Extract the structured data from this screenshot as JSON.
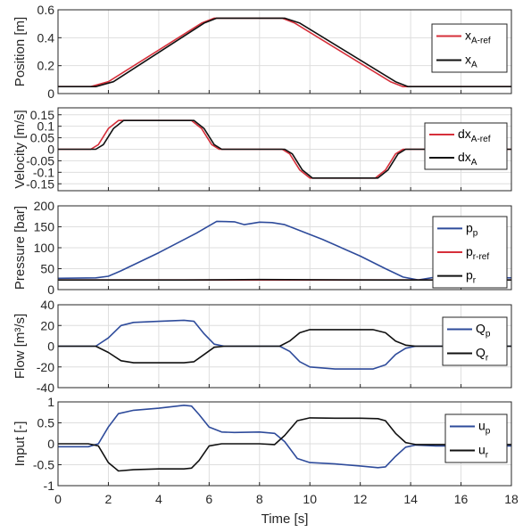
{
  "colors": {
    "ref": "#d62f3a",
    "meas": "#111111",
    "blue": "#2e4b9b",
    "grid": "#dedede",
    "axis": "#262626"
  },
  "chart_data": [
    {
      "type": "line",
      "ylabel": "Position [m]",
      "ylim": [
        0,
        0.6
      ],
      "yticks": [
        "0",
        "0.2",
        "0.4",
        "0.6"
      ],
      "ytick_values": [
        0,
        0.2,
        0.4,
        0.6
      ],
      "xlim": [
        0,
        18
      ],
      "legend": "right",
      "series": [
        {
          "name": "x",
          "sub": "A-ref",
          "color": "ref",
          "x": [
            0,
            1.3,
            2.0,
            5.7,
            6.2,
            8.9,
            9.4,
            13.2,
            13.7,
            18
          ],
          "y": [
            0.05,
            0.05,
            0.085,
            0.505,
            0.54,
            0.54,
            0.505,
            0.085,
            0.05,
            0.05
          ]
        },
        {
          "name": "x",
          "sub": "A",
          "color": "meas",
          "x": [
            0,
            1.5,
            2.2,
            5.8,
            6.3,
            9.0,
            9.6,
            13.4,
            13.9,
            18
          ],
          "y": [
            0.05,
            0.05,
            0.085,
            0.505,
            0.54,
            0.54,
            0.505,
            0.085,
            0.05,
            0.05
          ]
        }
      ]
    },
    {
      "type": "line",
      "ylabel": "Velocity [m/s]",
      "ylim": [
        -0.18,
        0.18
      ],
      "yticks": [
        "0.15",
        "0.1",
        "0.05",
        "0",
        "-0.05",
        "-0.1",
        "-0.15"
      ],
      "ytick_values": [
        0.15,
        0.1,
        0.05,
        0,
        -0.05,
        -0.1,
        -0.15
      ],
      "xlim": [
        0,
        18
      ],
      "legend": "right",
      "series": [
        {
          "name": "dx",
          "sub": "A-ref",
          "color": "ref",
          "x": [
            0,
            1.3,
            1.6,
            2.0,
            2.4,
            5.3,
            5.7,
            6.1,
            6.4,
            8.9,
            9.2,
            9.6,
            10.0,
            12.6,
            13.0,
            13.4,
            13.7,
            18
          ],
          "y": [
            0,
            0,
            0.02,
            0.09,
            0.125,
            0.125,
            0.09,
            0.02,
            0,
            0,
            -0.02,
            -0.09,
            -0.125,
            -0.125,
            -0.09,
            -0.02,
            0,
            0
          ]
        },
        {
          "name": "dx",
          "sub": "A",
          "color": "meas",
          "x": [
            0,
            1.5,
            1.8,
            2.2,
            2.6,
            5.4,
            5.8,
            6.2,
            6.5,
            9.0,
            9.3,
            9.7,
            10.1,
            12.7,
            13.1,
            13.5,
            13.8,
            18
          ],
          "y": [
            0,
            0,
            0.02,
            0.09,
            0.125,
            0.125,
            0.09,
            0.02,
            0,
            0,
            -0.02,
            -0.09,
            -0.125,
            -0.125,
            -0.09,
            -0.02,
            0,
            0
          ]
        }
      ]
    },
    {
      "type": "line",
      "ylabel": "Pressure [bar]",
      "ylim": [
        0,
        200
      ],
      "yticks": [
        "0",
        "50",
        "100",
        "150",
        "200"
      ],
      "ytick_values": [
        0,
        50,
        100,
        150,
        200
      ],
      "xlim": [
        0,
        18
      ],
      "legend": "right",
      "series": [
        {
          "name": "p",
          "sub": "p",
          "color": "blue",
          "x": [
            0,
            1.5,
            2.0,
            2.5,
            4.0,
            5.5,
            6.3,
            7.0,
            7.4,
            8.0,
            8.5,
            9.0,
            10.5,
            12.0,
            13.0,
            13.7,
            14.3,
            15.0,
            16.0,
            18
          ],
          "y": [
            27,
            28,
            32,
            45,
            88,
            135,
            163,
            162,
            155,
            161,
            160,
            155,
            120,
            80,
            50,
            30,
            23,
            30,
            30,
            28
          ]
        },
        {
          "name": "p",
          "sub": "r-ref",
          "color": "ref",
          "x": [
            0,
            18
          ],
          "y": [
            23,
            23
          ]
        },
        {
          "name": "p",
          "sub": "r",
          "color": "meas",
          "x": [
            0,
            5,
            8,
            13,
            18
          ],
          "y": [
            23,
            23,
            24,
            23,
            23
          ]
        }
      ]
    },
    {
      "type": "line",
      "ylabel": "Flow [m³/s]",
      "ylim": [
        -40,
        40
      ],
      "yticks": [
        "40",
        "20",
        "0",
        "-20",
        "-40"
      ],
      "ytick_values": [
        40,
        20,
        0,
        -20,
        -40
      ],
      "xlim": [
        0,
        18
      ],
      "legend": "right",
      "series": [
        {
          "name": "Q",
          "sub": "p",
          "color": "blue",
          "x": [
            0,
            1.5,
            2.0,
            2.5,
            3.0,
            4.0,
            5.0,
            5.4,
            5.8,
            6.2,
            6.6,
            8.8,
            9.2,
            9.6,
            10.0,
            11.0,
            12.5,
            13.0,
            13.4,
            13.8,
            14.2,
            18
          ],
          "y": [
            0,
            0,
            8,
            20,
            23,
            24,
            25,
            24,
            12,
            2,
            0,
            0,
            -5,
            -15,
            -20,
            -22,
            -22,
            -18,
            -8,
            -2,
            0,
            0
          ]
        },
        {
          "name": "Q",
          "sub": "r",
          "color": "meas",
          "x": [
            0,
            1.5,
            2.0,
            2.5,
            3.0,
            4.0,
            5.0,
            5.4,
            5.8,
            6.2,
            6.6,
            8.8,
            9.2,
            9.6,
            10.0,
            11.0,
            12.5,
            13.0,
            13.4,
            13.8,
            14.2,
            18
          ],
          "y": [
            0,
            0,
            -6,
            -14,
            -16,
            -16,
            -16,
            -15,
            -8,
            -1,
            0,
            0,
            5,
            13,
            16,
            16,
            16,
            13,
            5,
            1,
            0,
            0
          ]
        }
      ]
    },
    {
      "type": "line",
      "ylabel": "Input [-]",
      "ylim": [
        -1,
        1
      ],
      "yticks": [
        "1",
        "0.5",
        "0",
        "-0.5",
        "-1"
      ],
      "ytick_values": [
        1,
        0.5,
        0,
        -0.5,
        -1
      ],
      "xlim": [
        0,
        18
      ],
      "xlabel": "Time [s]",
      "xticks": [
        "0",
        "2",
        "4",
        "6",
        "8",
        "10",
        "12",
        "14",
        "16",
        "18"
      ],
      "xtick_values": [
        0,
        2,
        4,
        6,
        8,
        10,
        12,
        14,
        16,
        18
      ],
      "legend": "right",
      "series": [
        {
          "name": "u",
          "sub": "p",
          "color": "blue",
          "x": [
            0,
            1.2,
            1.6,
            2.0,
            2.4,
            3.0,
            4.0,
            5.0,
            5.3,
            5.6,
            6.0,
            6.5,
            7.0,
            8.0,
            8.6,
            9.0,
            9.5,
            10.0,
            11.0,
            12.0,
            12.7,
            13.0,
            13.4,
            13.8,
            14.2,
            15.0,
            18
          ],
          "y": [
            -0.07,
            -0.07,
            0.0,
            0.4,
            0.72,
            0.8,
            0.85,
            0.92,
            0.9,
            0.7,
            0.4,
            0.28,
            0.27,
            0.28,
            0.25,
            0.05,
            -0.35,
            -0.45,
            -0.48,
            -0.53,
            -0.57,
            -0.55,
            -0.3,
            -0.08,
            -0.03,
            -0.05,
            -0.05
          ]
        },
        {
          "name": "u",
          "sub": "r",
          "color": "meas",
          "x": [
            0,
            1.2,
            1.6,
            2.0,
            2.4,
            3.0,
            4.0,
            5.0,
            5.3,
            5.6,
            6.0,
            6.5,
            7.0,
            8.0,
            8.6,
            9.0,
            9.5,
            10.0,
            11.0,
            12.0,
            12.7,
            13.0,
            13.4,
            13.8,
            14.2,
            15.0,
            18
          ],
          "y": [
            0.0,
            0.0,
            -0.05,
            -0.45,
            -0.65,
            -0.62,
            -0.6,
            -0.6,
            -0.58,
            -0.4,
            -0.05,
            0.0,
            0.0,
            0.0,
            -0.02,
            0.2,
            0.55,
            0.62,
            0.61,
            0.61,
            0.6,
            0.55,
            0.25,
            0.03,
            -0.02,
            -0.02,
            -0.02
          ]
        }
      ]
    }
  ]
}
